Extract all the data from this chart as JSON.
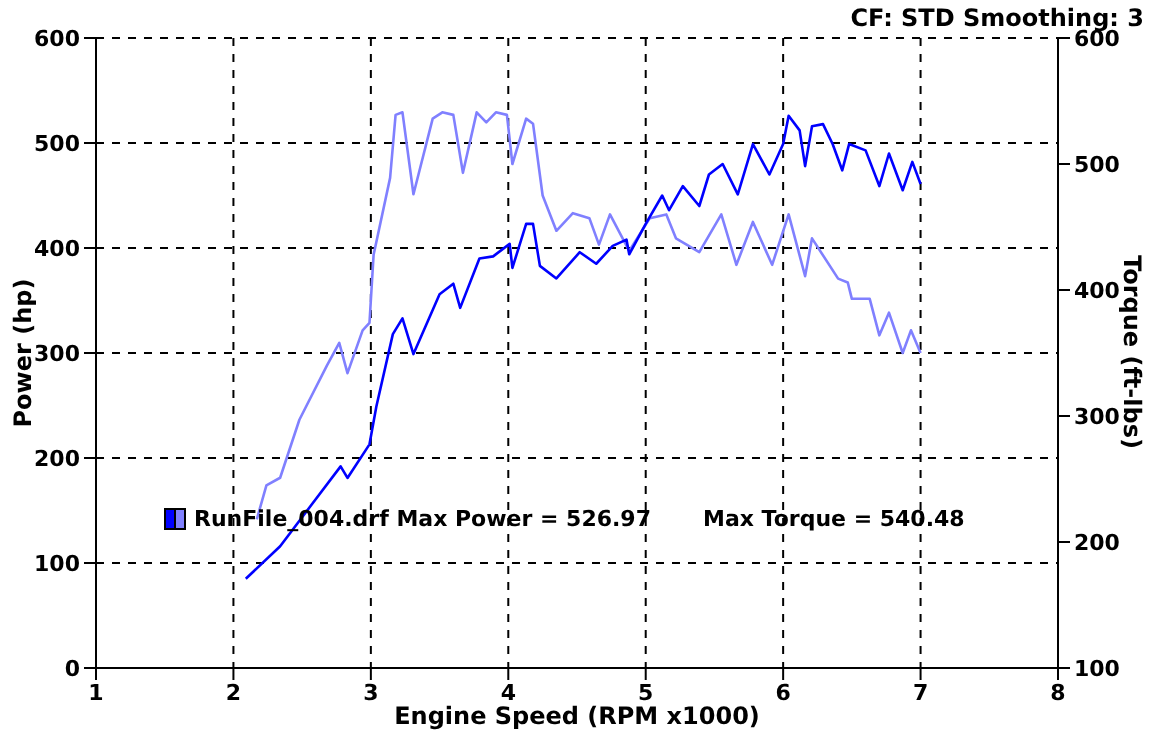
{
  "chart_data": {
    "type": "line",
    "xlabel": "Engine Speed (RPM x1000)",
    "ylabel": "Power (hp)",
    "y2label": "Torque (ft-lbs)",
    "annotations": [
      "CF: STD  Smoothing: 3",
      "RunFile_004.drf Max Power = 526.97",
      "Max Torque = 540.48"
    ],
    "xlim": [
      1,
      8
    ],
    "xticks": [
      1,
      2,
      3,
      4,
      5,
      6,
      7,
      8
    ],
    "ylim": [
      0,
      600
    ],
    "yticks": [
      0,
      100,
      200,
      300,
      400,
      500,
      600
    ],
    "y2lim": [
      100,
      600
    ],
    "y2ticks": [
      100,
      200,
      300,
      400,
      500,
      600
    ],
    "grid": true,
    "marker": "none",
    "line_style": "solid",
    "series": [
      {
        "color": "#8080ff",
        "axis": "y2",
        "x": [
          2.17,
          2.24,
          2.34,
          2.48,
          2.68,
          2.77,
          2.83,
          2.94,
          2.99,
          3.02,
          3.14,
          3.18,
          3.23,
          3.31,
          3.45,
          3.52,
          3.6,
          3.67,
          3.77,
          3.84,
          3.91,
          3.99,
          4.03,
          4.13,
          4.18,
          4.25,
          4.35,
          4.47,
          4.59,
          4.66,
          4.74,
          4.88,
          5.03,
          5.15,
          5.22,
          5.39,
          5.55,
          5.66,
          5.78,
          5.92,
          6.04,
          6.16,
          6.21,
          6.4,
          6.47,
          6.5,
          6.63,
          6.7,
          6.77,
          6.87,
          6.93,
          7.0
        ],
        "values": [
          218,
          245,
          251,
          297,
          340,
          358,
          334,
          368,
          374,
          428,
          489,
          539,
          541,
          476,
          536,
          541,
          539,
          493,
          541,
          533,
          541,
          539,
          500,
          536,
          532,
          475,
          447,
          461,
          457,
          436,
          460,
          431,
          457,
          460,
          441,
          430,
          460,
          420,
          454,
          420,
          460,
          411,
          441,
          409,
          406,
          393,
          393,
          364,
          382,
          350,
          368,
          350
        ]
      },
      {
        "color": "#0000ff",
        "x": [
          2.09,
          2.34,
          2.56,
          2.78,
          2.83,
          2.99,
          3.04,
          3.16,
          3.23,
          3.31,
          3.5,
          3.6,
          3.65,
          3.79,
          3.89,
          4.01,
          4.03,
          4.13,
          4.18,
          4.23,
          4.35,
          4.52,
          4.64,
          4.76,
          4.86,
          4.88,
          5.0,
          5.12,
          5.17,
          5.27,
          5.39,
          5.46,
          5.56,
          5.67,
          5.78,
          5.9,
          6.0,
          6.04,
          6.12,
          6.16,
          6.21,
          6.29,
          6.36,
          6.43,
          6.48,
          6.6,
          6.7,
          6.77,
          6.87,
          6.94,
          7.0
        ],
        "values": [
          85,
          116,
          154,
          192,
          181,
          213,
          249,
          318,
          333,
          299,
          356,
          366,
          343,
          390,
          392,
          404,
          381,
          423,
          423,
          383,
          371,
          396,
          385,
          402,
          408,
          394,
          423,
          450,
          436,
          459,
          440,
          470,
          480,
          451,
          499,
          470,
          499,
          526,
          512,
          478,
          516,
          518,
          499,
          474,
          499,
          493,
          459,
          490,
          455,
          482,
          461
        ]
      }
    ]
  }
}
